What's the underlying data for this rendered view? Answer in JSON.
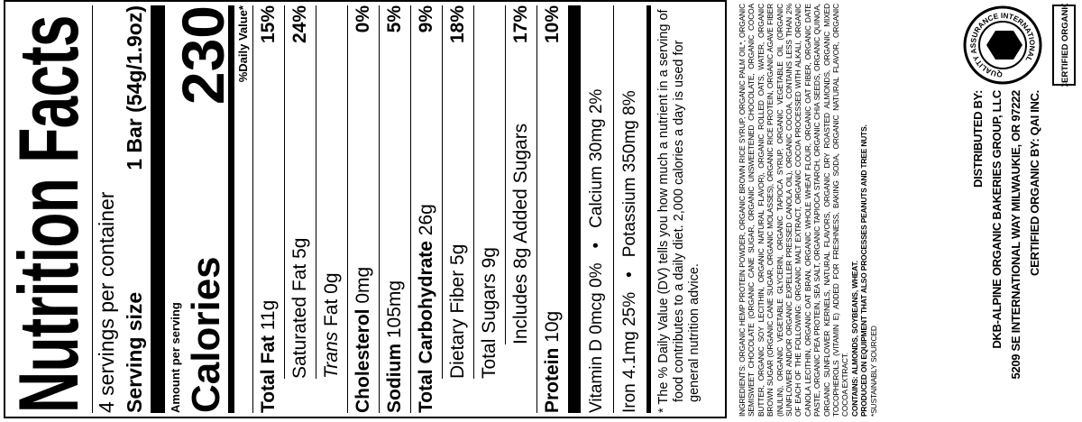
{
  "title": "Nutrition Facts",
  "servings": "4 servings per container",
  "serving_size": {
    "label": "Serving size",
    "value": "1 Bar (54g/1.9oz)"
  },
  "calories": {
    "caption": "Amount per serving",
    "label": "Calories",
    "value": "230"
  },
  "dv_header": "%Daily Value*",
  "nutrients": [
    {
      "bold": "Total Fat",
      "text": "11g",
      "dv": "15%",
      "sub": [
        {
          "text": "Saturated Fat 5g",
          "dv": "24%"
        },
        {
          "italic": "Trans",
          "text": "Fat 0g"
        }
      ]
    },
    {
      "bold": "Cholesterol",
      "text": "0mg",
      "dv": "0%"
    },
    {
      "bold": "Sodium",
      "text": "105mg",
      "dv": "5%"
    },
    {
      "bold": "Total Carbohydrate",
      "text": "26g",
      "dv": "9%",
      "sub": [
        {
          "text": "Dietary Fiber 5g",
          "dv": "18%"
        },
        {
          "text": "Total Sugars 9g",
          "sub": [
            {
              "text": "Includes 8g Added Sugars",
              "dv": "17%"
            }
          ]
        }
      ]
    },
    {
      "bold": "Protein",
      "text": "10g",
      "dv": "10%"
    }
  ],
  "separator": "•",
  "vitamins": [
    [
      "Vitamin D 0mcg 0%",
      "Calcium 30mg 2%"
    ],
    [
      "Iron 4.1mg 25%",
      "Potassium 350mg 8%"
    ]
  ],
  "footnote": "* The % Daily Value (DV) tells you how much a nutrient in a serving of food contributes to a daily diet. 2,000 calories a day is used for general nutrition advice.",
  "ingredients": "INGREDIENTS: ORGANIC HEMP PROTEIN POWDER, ORGANIC BROWN RICE SYRUP, ORGANIC PALM OIL*, ORGANIC SEMISWEET CHOCOLATE (ORGANIC CANE SUGAR, ORGANIC UNSWEETENED CHOCOLATE, ORGANIC COCOA BUTTER, ORGANIC SOY LECITHIN, ORGANIC NATURAL FLAVOR), ORGANIC ROLLED OATS, WATER, ORGANIC BROWN SUGAR (ORGANIC CANE SUGAR, ORGANIC MOLASSES), ORGANIC RICE PROTEIN, ORGANIC AGAVE FIBER (INULIN), ORGANIC VEGETABLE GLYCERIN, ORGANIC TAPIOCA SYRUP, ORGANIC VEGETABLE OIL (ORGANIC SUNFLOWER AND/OR ORGANIC EXPELLER PRESSED CANOLA OIL), ORGANIC COCOA, CONTAINS LESS THAN 2% OF EACH OF THE FOLLOWING: ORGANIC MALT EXTRACT, ORGANIC COCOA PROCESSED WITH ALKALI, ORGANIC CANOLA LECITHIN, ORGANIC OAT BRAN, ORGANIC WHOLE WHEAT FLOUR, ORGANIC OAT FIBER, ORGANIC DATE PASTE, ORGANIC PEA PROTEIN, SEA SALT, ORGANIC TAPIOCA STARCH, ORGANIC CHIA SEEDS, ORGANIC QUINOA, ORGANIC SUNFLOWER KERNELS, NATURAL FLAVORS, ORGANIC DRY ROASTED ALMONDS, ORGANIC MIXED TOCOPHEROLS (VITAMIN E) ADDED FOR FRESHNESS, BAKING SODA, ORGANIC NATURAL FLAVOR, ORGANIC COCOA EXTRACT.",
  "contains": "CONTAINS: ALMONDS, SOYBEANS, WHEAT.",
  "equipment": "PRODUCED ON EQUIPMENT THAT ALSO PROCESSES PEANUTS AND TREE NUTS.",
  "sourced": "*SUSTAINABLY SOURCED",
  "distributor": [
    "DISTRIBUTED BY:",
    "DKB-ALPINE ORGANIC BAKERIES GROUP, LLC",
    "5209 SE INTERNATIONAL WAY MILWAUKIE, OR 97222",
    "CERTIFIED ORGANIC BY: QAI INC."
  ],
  "logo": {
    "ring": "QUALITY ASSURANCE INTERNATIONAL",
    "label": "CERTIFIED ORGANIC"
  }
}
